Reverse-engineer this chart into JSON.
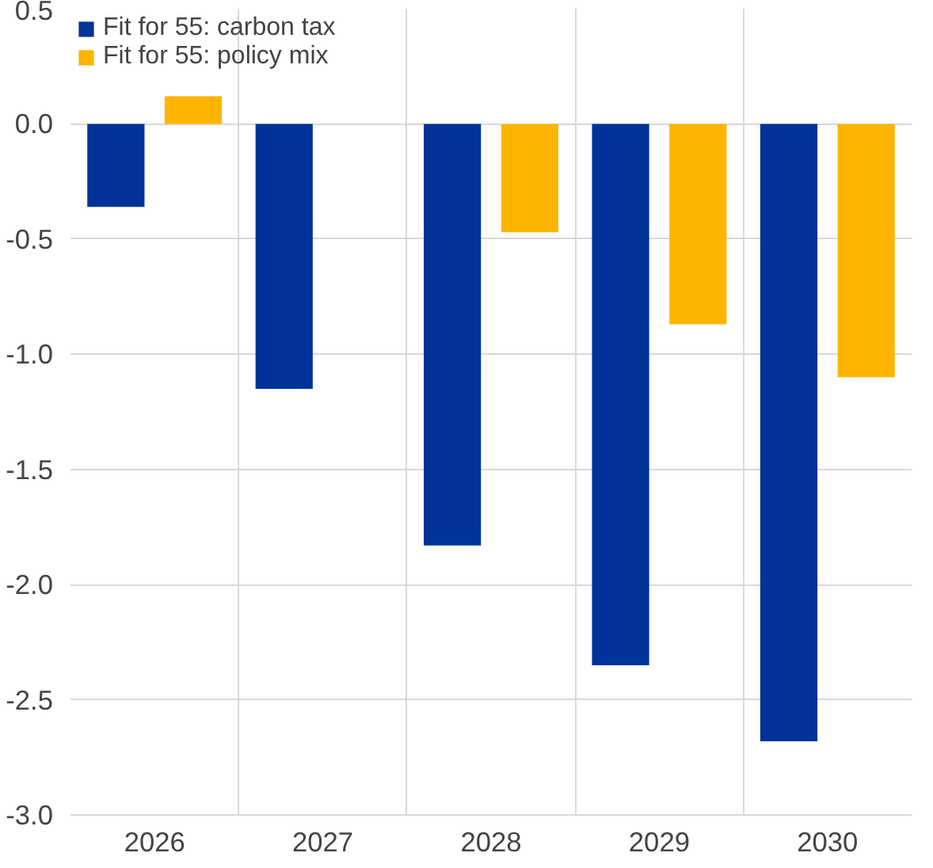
{
  "chart_data": {
    "type": "bar",
    "categories": [
      "2026",
      "2027",
      "2028",
      "2029",
      "2030"
    ],
    "series": [
      {
        "name": "Fit for 55: carbon tax",
        "color": "#003299",
        "values": [
          -0.36,
          -1.15,
          -1.83,
          -2.35,
          -2.68
        ]
      },
      {
        "name": "Fit for 55: policy mix",
        "color": "#ffb400",
        "values": [
          0.12,
          null,
          -0.47,
          -0.87,
          -1.1
        ]
      }
    ],
    "ylim": [
      -3.0,
      0.5
    ],
    "yticks": [
      {
        "value": 0.5,
        "label": "0.5"
      },
      {
        "value": 0,
        "label": "0.0"
      },
      {
        "value": -0.5,
        "label": "-0.5"
      },
      {
        "value": -1,
        "label": "-1.0"
      },
      {
        "value": -1.5,
        "label": "-1.5"
      },
      {
        "value": -2,
        "label": "-2.0"
      },
      {
        "value": -2.5,
        "label": "-2.5"
      },
      {
        "value": -3,
        "label": "-3.0"
      }
    ],
    "grid": true,
    "legend": "top left"
  }
}
